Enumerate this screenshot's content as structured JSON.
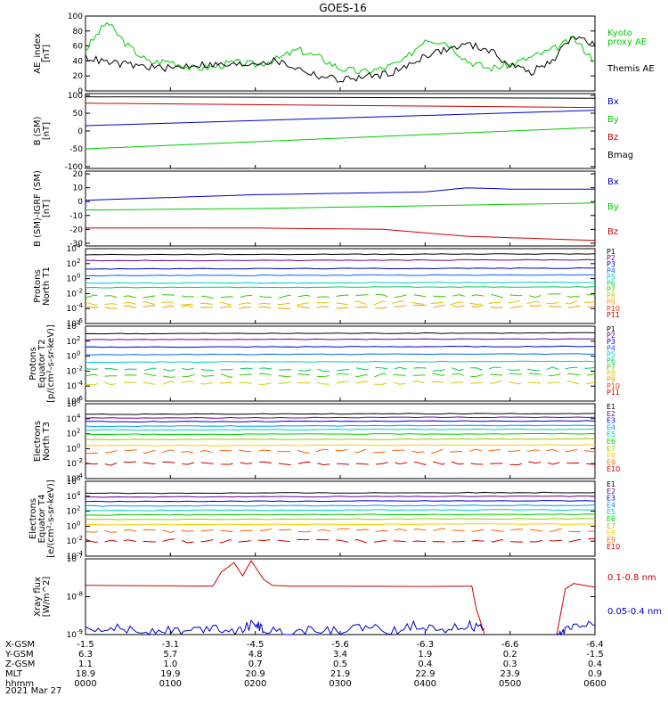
{
  "title": "GOES-16",
  "date_label": "2021 Mar 27",
  "colors": {
    "black": "#000000",
    "green": "#00dd00",
    "blue": "#0000cc",
    "red": "#cc0000"
  },
  "chart_data": [
    {
      "id": "ae",
      "type": "line",
      "ylabel_lines": [
        "AE_index",
        "[nT]"
      ],
      "ylim": [
        0,
        100
      ],
      "ticks": [
        0,
        20,
        40,
        60,
        80,
        100
      ],
      "tick_labels": [
        "0",
        "20",
        "40",
        "60",
        "80",
        "100"
      ],
      "series": [
        {
          "name_lines": [
            "Kyoto",
            "proxy AE"
          ],
          "color": "#00cc00",
          "x": [
            0,
            0.25,
            0.5,
            0.75,
            1,
            1.25,
            1.5,
            1.75,
            2,
            2.25,
            2.5,
            2.75,
            3,
            3.25,
            3.5,
            3.75,
            4,
            4.25,
            4.5,
            4.75,
            5,
            5.25,
            5.5,
            5.75,
            6
          ],
          "values": [
            55,
            92,
            60,
            38,
            40,
            30,
            32,
            38,
            35,
            42,
            55,
            45,
            30,
            25,
            30,
            40,
            70,
            65,
            40,
            30,
            35,
            45,
            55,
            70,
            40
          ]
        },
        {
          "name_lines": [
            "Themis AE"
          ],
          "color": "#000000",
          "x": [
            0,
            0.25,
            0.5,
            0.75,
            1,
            1.25,
            1.5,
            1.75,
            2,
            2.25,
            2.5,
            2.75,
            3,
            3.25,
            3.5,
            3.75,
            4,
            4.25,
            4.5,
            4.75,
            5,
            5.25,
            5.5,
            5.75,
            6
          ],
          "values": [
            45,
            38,
            35,
            32,
            30,
            35,
            35,
            34,
            38,
            40,
            30,
            20,
            15,
            18,
            22,
            30,
            48,
            55,
            62,
            55,
            35,
            25,
            40,
            75,
            60
          ]
        }
      ]
    },
    {
      "id": "b",
      "type": "line",
      "ylabel_lines": [
        "B (SM)",
        "[nT]"
      ],
      "ylim": [
        -105,
        105
      ],
      "ticks": [
        -100,
        -50,
        0,
        50,
        100
      ],
      "tick_labels": [
        "-100",
        "-50",
        "0",
        "50",
        "100"
      ],
      "series": [
        {
          "name_lines": [
            "Bx"
          ],
          "color": "#0000cc",
          "x": [
            0,
            6
          ],
          "values": [
            15,
            58
          ]
        },
        {
          "name_lines": [
            "By"
          ],
          "color": "#00cc00",
          "x": [
            0,
            6
          ],
          "values": [
            -50,
            10
          ]
        },
        {
          "name_lines": [
            "Bz"
          ],
          "color": "#cc0000",
          "x": [
            0,
            6
          ],
          "values": [
            78,
            66
          ]
        },
        {
          "name_lines": [
            "Bmag"
          ],
          "color": "#000000",
          "x": [
            0,
            6
          ],
          "values": [
            96,
            92
          ]
        }
      ]
    },
    {
      "id": "dbigrf",
      "type": "line",
      "ylabel_lines": [
        "B (SM)-IGRF (SM)",
        "[nT]"
      ],
      "ylim": [
        -32,
        22
      ],
      "ticks": [
        -30,
        -20,
        -10,
        0,
        10,
        20
      ],
      "tick_labels": [
        "-30",
        "-20",
        "-10",
        "0",
        "10",
        "20"
      ],
      "series": [
        {
          "name_lines": [
            "Bx"
          ],
          "color": "#0000cc",
          "x": [
            0,
            1,
            2,
            3,
            4,
            4.5,
            5,
            6
          ],
          "values": [
            1,
            3,
            5,
            6,
            7,
            10,
            9,
            9
          ]
        },
        {
          "name_lines": [
            "By"
          ],
          "color": "#00cc00",
          "x": [
            0,
            2,
            4,
            6
          ],
          "values": [
            -6,
            -5,
            -3,
            -1
          ]
        },
        {
          "name_lines": [
            "Bz"
          ],
          "color": "#cc0000",
          "x": [
            0,
            2,
            3.5,
            4.5,
            5,
            6
          ],
          "values": [
            -19,
            -19,
            -20,
            -25,
            -26,
            -28
          ]
        }
      ]
    },
    {
      "id": "protons_t1",
      "type": "line",
      "log": true,
      "ylabel_lines": [
        "Protons",
        "North T1"
      ],
      "ylim_exp": [
        -6,
        4
      ],
      "ticks_exp": [
        -6,
        -4,
        -2,
        0,
        2,
        4
      ],
      "tick_labels": [
        "10",
        "10",
        "10",
        "10",
        "10",
        "10"
      ],
      "tick_sup": [
        "-6",
        "-4",
        "-2",
        "0",
        "2",
        "4"
      ],
      "legend": [
        "P1",
        "P2",
        "P3",
        "P4",
        "P5",
        "P6",
        "P7",
        "P8",
        "P9",
        "P10",
        "P11"
      ],
      "channel_colors": [
        "#000000",
        "#660099",
        "#0000cc",
        "#0066ff",
        "#00cccc",
        "#00cc66",
        "#33cc00",
        "#cccc00",
        "#ff9900",
        "#ff3300",
        "#cc0000"
      ],
      "levels_exp": [
        3.2,
        2.4,
        1.3,
        0.4,
        -0.6,
        -1.2,
        -2.4,
        -3.3,
        -3.8
      ]
    },
    {
      "id": "protons_t2",
      "type": "line",
      "log": true,
      "ylabel_lines": [
        "Protons",
        "Equator T2",
        "[p/(cm²-s-sr-keV)]"
      ],
      "ylim_exp": [
        -6,
        4
      ],
      "ticks_exp": [
        -6,
        -4,
        -2,
        0,
        2,
        4
      ],
      "tick_labels": [
        "10",
        "10",
        "10",
        "10",
        "10",
        "10"
      ],
      "tick_sup": [
        "-6",
        "-4",
        "-2",
        "0",
        "2",
        "4"
      ],
      "legend": [
        "P1",
        "P2",
        "P3",
        "P4",
        "P5",
        "P6",
        "P7",
        "P8",
        "P9",
        "P10",
        "P11"
      ],
      "channel_colors": [
        "#000000",
        "#660099",
        "#0000cc",
        "#0066ff",
        "#00cccc",
        "#00cc66",
        "#33cc00",
        "#cccc00",
        "#ff9900",
        "#ff3300",
        "#cc0000"
      ],
      "levels_exp": [
        3.0,
        2.2,
        1.2,
        0.2,
        -0.8,
        -1.8,
        -2.6,
        -3.6
      ]
    },
    {
      "id": "electrons_t3",
      "type": "line",
      "log": true,
      "ylabel_lines": [
        "Electrons",
        "North T3"
      ],
      "ylim_exp": [
        -4,
        6
      ],
      "ticks_exp": [
        -4,
        -2,
        0,
        2,
        4,
        6
      ],
      "tick_labels": [
        "10",
        "10",
        "10",
        "10",
        "10",
        "10"
      ],
      "tick_sup": [
        "-4",
        "-2",
        "0",
        "2",
        "4",
        "6"
      ],
      "legend": [
        "E1",
        "E2",
        "E3",
        "E4",
        "E5",
        "E6",
        "E7",
        "E8",
        "E9",
        "E10"
      ],
      "channel_colors": [
        "#000000",
        "#660099",
        "#0000cc",
        "#0099ff",
        "#00cccc",
        "#00cc00",
        "#99cc00",
        "#ffcc00",
        "#ff6600",
        "#cc0000"
      ],
      "levels_exp": [
        4.6,
        4.1,
        3.6,
        3.0,
        2.5,
        1.9,
        1.2,
        0.4,
        -0.4,
        -2.0
      ]
    },
    {
      "id": "electrons_t4",
      "type": "line",
      "log": true,
      "ylabel_lines": [
        "Electrons",
        "Equator T4",
        "[e/(cm²-s-sr-keV)]"
      ],
      "ylim_exp": [
        -4,
        6
      ],
      "ticks_exp": [
        -4,
        -2,
        0,
        2,
        4,
        6
      ],
      "tick_labels": [
        "10",
        "10",
        "10",
        "10",
        "10",
        "10"
      ],
      "tick_sup": [
        "-4",
        "-2",
        "0",
        "2",
        "4",
        "6"
      ],
      "legend": [
        "E1",
        "E2",
        "E3",
        "E4",
        "E5",
        "E6",
        "E7",
        "E8",
        "E9",
        "E10"
      ],
      "channel_colors": [
        "#000000",
        "#660099",
        "#0000cc",
        "#0099ff",
        "#00cccc",
        "#00cc00",
        "#99cc00",
        "#ffcc00",
        "#ff6600",
        "#cc0000"
      ],
      "levels_exp": [
        4.4,
        3.9,
        3.3,
        2.7,
        2.1,
        1.5,
        0.9,
        0.2,
        -0.6,
        -2.0
      ]
    },
    {
      "id": "xray",
      "type": "line",
      "log": true,
      "ylabel_lines": [
        "Xray flux",
        "[W/m^2]"
      ],
      "ylim_exp": [
        -9,
        -7
      ],
      "ticks_exp": [
        -9,
        -8,
        -7
      ],
      "tick_labels": [
        "10",
        "10",
        "10"
      ],
      "tick_sup": [
        "-9",
        "-8",
        "-7"
      ],
      "series": [
        {
          "name_lines": [
            "0.1-0.8 nm"
          ],
          "color": "#cc0000",
          "segments": [
            {
              "x": [
                0,
                1.5,
                1.6,
                1.75,
                1.85,
                1.95,
                2.1,
                2.2,
                2.4,
                3.0,
                4.0,
                4.55,
                4.6,
                4.7
              ],
              "values": [
                -7.7,
                -7.72,
                -7.35,
                -7.1,
                -7.45,
                -7.05,
                -7.55,
                -7.7,
                -7.72,
                -7.72,
                -7.73,
                -7.72,
                -8.3,
                -9.0
              ]
            },
            {
              "x": [
                5.55,
                5.65,
                5.75,
                6
              ],
              "values": [
                -9.0,
                -7.8,
                -7.65,
                -7.75
              ]
            }
          ]
        },
        {
          "name_lines": [
            "0.05-0.4 nm"
          ],
          "color": "#0000cc",
          "segments": [
            {
              "x": [
                0,
                0.3,
                0.6,
                0.9,
                1.2,
                1.5,
                1.8,
                2.0,
                2.1,
                2.4,
                2.7,
                3.0,
                3.3,
                3.6,
                3.9,
                4.2,
                4.5,
                4.7
              ],
              "values": [
                -8.9,
                -8.75,
                -8.95,
                -8.85,
                -8.92,
                -8.8,
                -8.9,
                -8.7,
                -8.9,
                -8.95,
                -8.85,
                -8.9,
                -8.8,
                -8.9,
                -8.75,
                -8.85,
                -8.75,
                -8.85
              ]
            },
            {
              "x": [
                5.55,
                5.65,
                5.8,
                6
              ],
              "values": [
                -9.0,
                -8.9,
                -8.8,
                -8.75
              ]
            }
          ]
        }
      ]
    }
  ],
  "x_axis": {
    "tick_hours": [
      0,
      1,
      2,
      3,
      4,
      5,
      6
    ],
    "rows": [
      {
        "label": "X-GSM",
        "values": [
          "-1.5",
          "-3.1",
          "-4.5",
          "-5.6",
          "-6.3",
          "-6.6",
          "-6.4"
        ]
      },
      {
        "label": "Y-GSM",
        "values": [
          "6.3",
          "5.7",
          "4.8",
          "3.4",
          "1.9",
          "0.2",
          "-1.5"
        ]
      },
      {
        "label": "Z-GSM",
        "values": [
          "1.1",
          "1.0",
          "0.7",
          "0.5",
          "0.4",
          "0.3",
          "0.4"
        ]
      },
      {
        "label": "MLT",
        "values": [
          "18.9",
          "19.9",
          "20.9",
          "21.9",
          "22.9",
          "23.9",
          "0.9"
        ]
      },
      {
        "label": "hhmm",
        "values": [
          "0000",
          "0100",
          "0200",
          "0300",
          "0400",
          "0500",
          "0600"
        ]
      }
    ]
  }
}
